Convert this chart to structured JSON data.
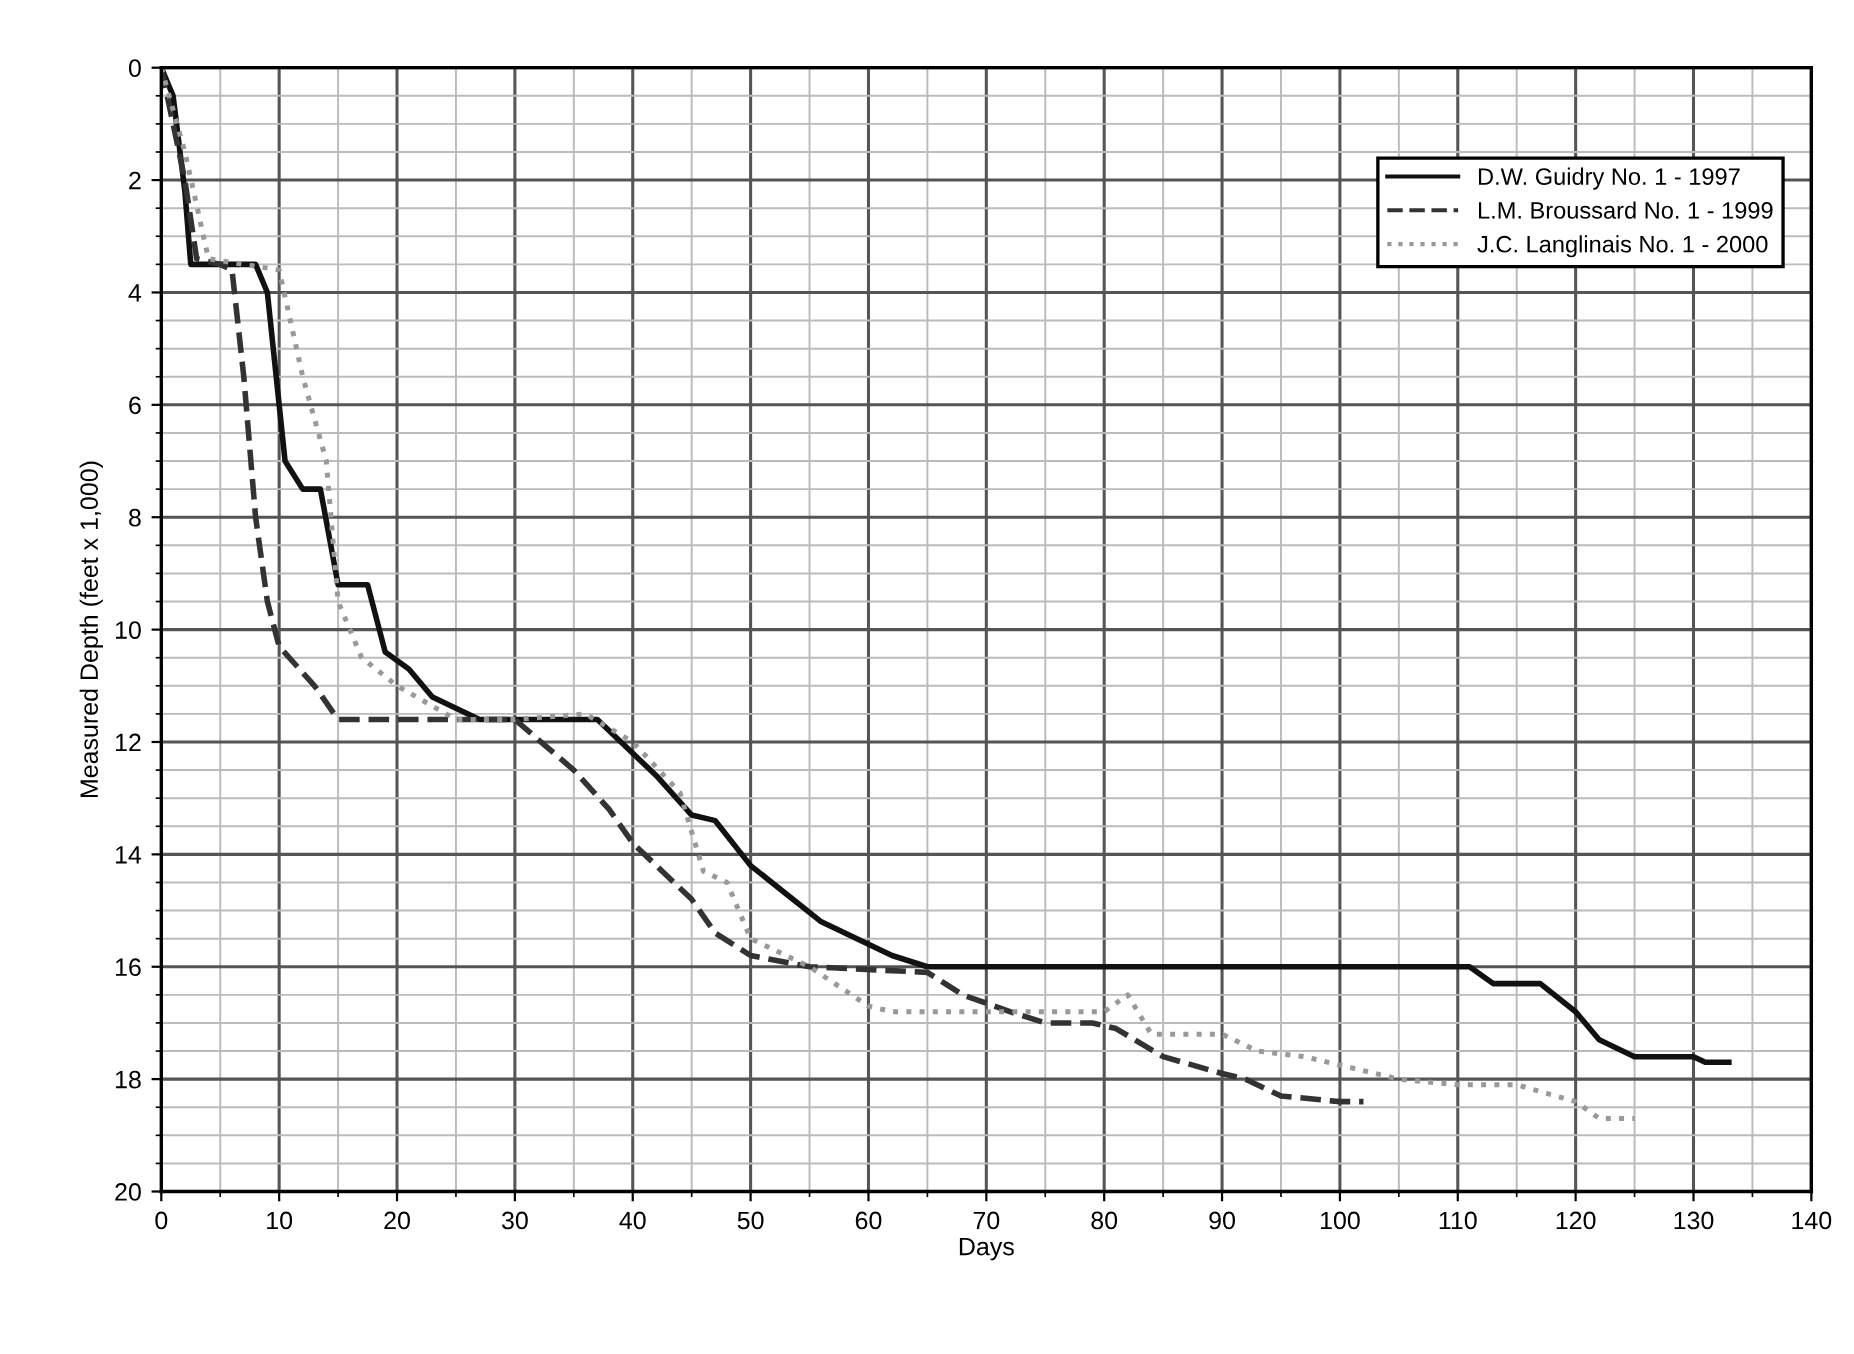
{
  "chart_data": {
    "type": "line",
    "xlabel": "Days",
    "ylabel": "Measured Depth (feet x 1,000)",
    "xlim": [
      0,
      140
    ],
    "xticks": [
      0,
      10,
      20,
      30,
      40,
      50,
      60,
      70,
      80,
      90,
      100,
      110,
      120,
      130,
      140
    ],
    "ylim": [
      20,
      0
    ],
    "yticks": [
      0,
      2,
      4,
      6,
      8,
      10,
      12,
      14,
      16,
      18,
      20
    ],
    "grid": true,
    "legend": "top right",
    "marker": "none",
    "series": [
      {
        "name": "D.W. Guidry No. 1 - 1997",
        "color": "#111111",
        "line_style": "solid",
        "x": [
          0,
          1,
          2,
          2.5,
          8,
          9,
          10,
          10.5,
          12,
          13.5,
          15,
          17.5,
          19,
          21,
          23,
          27,
          37,
          40,
          42,
          45,
          47,
          50,
          53,
          56,
          60,
          62,
          65,
          111,
          113,
          117,
          120,
          122,
          125,
          130,
          131,
          133
        ],
        "values": [
          0,
          0.5,
          2.2,
          3.5,
          3.5,
          4,
          6,
          7,
          7.5,
          7.5,
          9.2,
          9.2,
          10.4,
          10.7,
          11.2,
          11.6,
          11.6,
          12.2,
          12.6,
          13.3,
          13.4,
          14.2,
          14.7,
          15.2,
          15.6,
          15.8,
          16,
          16,
          16.3,
          16.3,
          16.8,
          17.3,
          17.6,
          17.6,
          17.7,
          17.7
        ]
      },
      {
        "name": "L.M. Broussard No. 1 - 1999",
        "color": "#333333",
        "line_style": "dashed",
        "x": [
          0,
          2,
          3,
          5,
          6,
          7,
          8,
          9,
          10,
          13,
          15,
          20,
          30,
          35,
          38,
          40,
          45,
          47,
          50,
          55,
          65,
          68,
          72,
          75,
          79,
          81,
          85,
          90,
          92,
          95,
          100,
          102
        ],
        "values": [
          0,
          2,
          3.4,
          3.5,
          3.6,
          5.5,
          8,
          9.5,
          10.3,
          11,
          11.6,
          11.6,
          11.6,
          12.5,
          13.2,
          13.8,
          14.8,
          15.4,
          15.8,
          16,
          16.1,
          16.5,
          16.8,
          17,
          17,
          17.1,
          17.6,
          17.9,
          18,
          18.3,
          18.4,
          18.4
        ]
      },
      {
        "name": "J.C. Langlinais No. 1 - 2000",
        "color": "#999999",
        "line_style": "dotted",
        "x": [
          0,
          2,
          4,
          10,
          12,
          14,
          15,
          17,
          20,
          25,
          30,
          36,
          40,
          44,
          46,
          48,
          50,
          55,
          60,
          62,
          70,
          80,
          82,
          84,
          90,
          93,
          97,
          101,
          105,
          110,
          115,
          120,
          122,
          125
        ],
        "values": [
          0,
          1.5,
          3.4,
          3.6,
          5.5,
          7,
          9.5,
          10.5,
          11,
          11.6,
          11.6,
          11.5,
          12,
          12.9,
          14.3,
          14.5,
          15.5,
          16,
          16.7,
          16.8,
          16.8,
          16.8,
          16.5,
          17.2,
          17.2,
          17.5,
          17.6,
          17.8,
          18,
          18.1,
          18.1,
          18.4,
          18.7,
          18.7
        ]
      }
    ]
  }
}
